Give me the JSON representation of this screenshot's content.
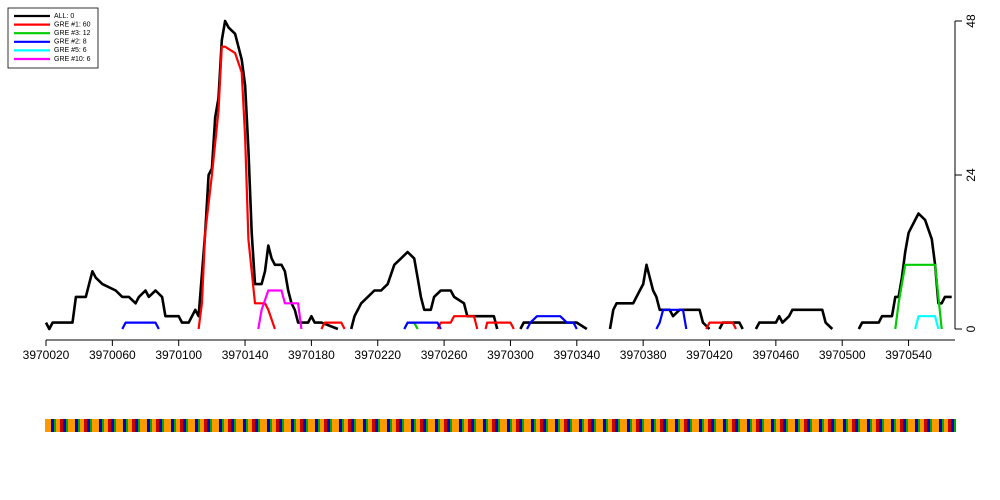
{
  "chart_data": {
    "type": "line",
    "xlim": [
      3970020,
      3970568
    ],
    "ylim": [
      0,
      48
    ],
    "xticks": [
      3970020,
      3970060,
      3970100,
      3970140,
      3970180,
      3970220,
      3970260,
      3970300,
      3970340,
      3970380,
      3970420,
      3970460,
      3970500,
      3970540
    ],
    "yticks": [
      0,
      24,
      48
    ],
    "legend": "top-left",
    "series": [
      {
        "name": "ALL: 0",
        "color": "#000000",
        "x": [
          3970020,
          3970022,
          3970024,
          3970036,
          3970038,
          3970044,
          3970046,
          3970048,
          3970050,
          3970054,
          3970062,
          3970066,
          3970070,
          3970074,
          3970076,
          3970080,
          3970082,
          3970086,
          3970090,
          3970092,
          3970100,
          3970102,
          3970106,
          3970108,
          3970110,
          3970112,
          3970116,
          3970118,
          3970120,
          3970122,
          3970124,
          3970126,
          3970128,
          3970130,
          3970134,
          3970136,
          3970138,
          3970140,
          3970142,
          3970144,
          3970146,
          3970150,
          3970152,
          3970154,
          3970156,
          3970158,
          3970162,
          3970164,
          3970166,
          3970168,
          3970170,
          3970172,
          3970178,
          3970180,
          3970182,
          3970186,
          3970196,
          null,
          3970204,
          3970206,
          3970210,
          3970214,
          3970218,
          3970222,
          3970226,
          3970230,
          3970234,
          3970238,
          3970242,
          3970244,
          3970246,
          3970248,
          3970252,
          3970254,
          3970258,
          3970264,
          3970266,
          3970272,
          3970274,
          3970290,
          3970292,
          null,
          3970306,
          3970308,
          3970340,
          3970346,
          null,
          3970360,
          3970362,
          3970364,
          3970374,
          3970376,
          3970378,
          3970380,
          3970382,
          3970384,
          3970386,
          3970388,
          3970390,
          3970396,
          3970398,
          3970402,
          3970404,
          3970414,
          3970416,
          3970420,
          null,
          3970426,
          3970428,
          3970438,
          3970440,
          null,
          3970448,
          3970450,
          3970460,
          3970462,
          3970464,
          3970468,
          3970470,
          3970488,
          3970490,
          3970494,
          null,
          3970510,
          3970512,
          3970522,
          3970524,
          3970530,
          3970532,
          3970534,
          3970536,
          3970538,
          3970540,
          3970542,
          3970544,
          3970546,
          3970550,
          3970554,
          3970556,
          3970558,
          3970560,
          3970562,
          3970566
        ],
        "values": [
          1,
          0,
          1,
          1,
          5,
          5,
          7,
          9,
          8,
          7,
          6,
          5,
          5,
          4,
          5,
          6,
          5,
          6,
          5,
          2,
          2,
          1,
          1,
          2,
          3,
          2,
          15,
          24,
          25,
          33,
          36,
          45,
          48,
          47,
          46,
          44,
          42,
          38,
          28,
          15,
          7,
          7,
          9,
          13,
          11,
          10,
          10,
          9,
          6,
          4,
          3,
          1,
          1,
          2,
          1,
          1,
          0,
          null,
          0,
          2,
          4,
          5,
          6,
          6,
          7,
          10,
          11,
          12,
          11,
          8,
          5,
          3,
          3,
          5,
          6,
          6,
          5,
          4,
          2,
          2,
          0,
          null,
          0,
          1,
          1,
          0,
          null,
          0,
          3,
          4,
          4,
          5,
          6,
          7,
          10,
          8,
          6,
          5,
          3,
          3,
          2,
          3,
          3,
          3,
          1,
          0,
          null,
          0,
          1,
          1,
          0,
          null,
          0,
          1,
          1,
          2,
          1,
          2,
          3,
          3,
          1,
          0,
          null,
          0,
          1,
          1,
          2,
          2,
          5,
          5,
          8,
          12,
          15,
          16,
          17,
          18,
          17,
          14,
          10,
          4,
          4,
          5,
          5
        ]
      },
      {
        "name": "GRE #1: 60",
        "color": "#ff0000",
        "x": [
          3970112,
          3970114,
          3970116,
          3970120,
          3970124,
          3970126,
          3970128,
          3970134,
          3970138,
          3970140,
          3970142,
          3970146,
          3970152,
          3970154,
          3970158,
          null,
          3970186,
          3970188,
          3970198,
          3970200,
          null,
          3970256,
          3970258,
          3970264,
          3970266,
          3970278,
          3970280,
          null,
          3970285,
          3970286,
          3970300,
          3970302,
          null,
          3970418,
          3970420,
          3970434,
          3970436
        ],
        "values": [
          0,
          4,
          15,
          24,
          34,
          44,
          44,
          43,
          40,
          30,
          14,
          4,
          4,
          3,
          0,
          null,
          0,
          1,
          1,
          0,
          null,
          0,
          1,
          1,
          2,
          2,
          0,
          null,
          0,
          1,
          1,
          0,
          null,
          0,
          1,
          1,
          0
        ]
      },
      {
        "name": "GRE #3: 12",
        "color": "#00cc00",
        "x": [
          3970236,
          3970238,
          3970242,
          3970244,
          null,
          3970532,
          3970534,
          3970536,
          3970538,
          3970552,
          3970556,
          3970560
        ],
        "values": [
          0,
          1,
          1,
          0,
          null,
          0,
          4,
          7,
          10,
          10,
          10,
          0
        ]
      },
      {
        "name": "GRE #2: 8",
        "color": "#0000ff",
        "x": [
          3970066,
          3970068,
          3970086,
          3970088,
          null,
          3970236,
          3970238,
          3970256,
          3970258,
          null,
          3970310,
          3970312,
          3970316,
          3970330,
          3970334,
          3970338,
          3970340,
          null,
          3970388,
          3970390,
          3970392,
          3970404,
          3970406
        ],
        "values": [
          0,
          1,
          1,
          0,
          null,
          0,
          1,
          1,
          0,
          null,
          0,
          1,
          2,
          2,
          1,
          1,
          0,
          null,
          0,
          1,
          3,
          3,
          0
        ]
      },
      {
        "name": "GRE #5: 6",
        "color": "#00ffff",
        "x": [
          3970544,
          3970546,
          3970556,
          3970558
        ],
        "values": [
          0,
          2,
          2,
          0
        ]
      },
      {
        "name": "GRE #10: 6",
        "color": "#ff00ff",
        "x": [
          3970148,
          3970150,
          3970154,
          3970162,
          3970164,
          3970172,
          3970174
        ],
        "values": [
          0,
          3,
          6,
          6,
          4,
          4,
          0
        ]
      }
    ]
  }
}
